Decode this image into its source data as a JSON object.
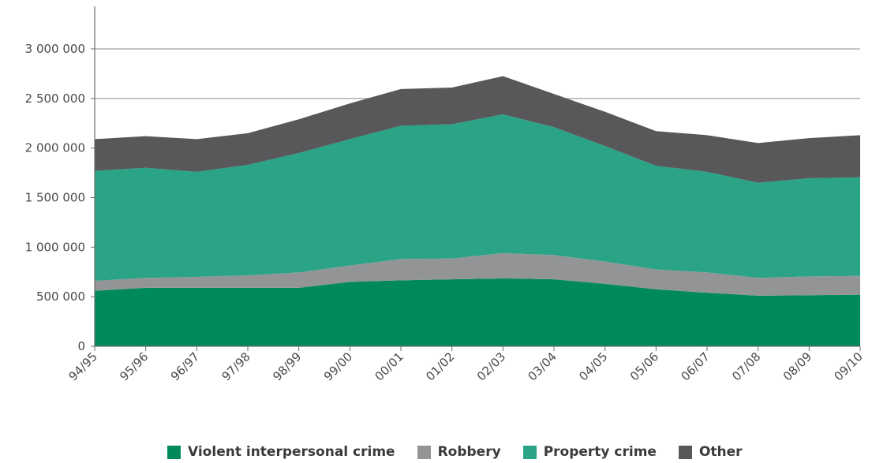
{
  "chart_data": {
    "type": "area",
    "stacked": true,
    "categories": [
      "94/95",
      "95/96",
      "96/97",
      "97/98",
      "98/99",
      "99/00",
      "00/01",
      "01/02",
      "02/03",
      "03/04",
      "04/05",
      "05/06",
      "06/07",
      "07/08",
      "08/09",
      "09/10"
    ],
    "series": [
      {
        "name": "Violent interpersonal crime",
        "color": "#008a5b",
        "values": [
          560000,
          590000,
          590000,
          590000,
          590000,
          650000,
          665000,
          675000,
          685000,
          675000,
          630000,
          575000,
          540000,
          510000,
          515000,
          520000
        ]
      },
      {
        "name": "Robbery",
        "color": "#939496",
        "values": [
          100000,
          100000,
          110000,
          125000,
          155000,
          165000,
          215000,
          210000,
          255000,
          245000,
          225000,
          200000,
          205000,
          180000,
          190000,
          190000
        ]
      },
      {
        "name": "Property crime",
        "color": "#2aa386",
        "values": [
          1110000,
          1110000,
          1060000,
          1115000,
          1205000,
          1275000,
          1345000,
          1355000,
          1400000,
          1290000,
          1165000,
          1045000,
          1015000,
          960000,
          990000,
          995000
        ]
      },
      {
        "name": "Other",
        "color": "#58585a",
        "values": [
          320000,
          320000,
          330000,
          320000,
          340000,
          360000,
          370000,
          370000,
          385000,
          335000,
          345000,
          350000,
          370000,
          400000,
          405000,
          425000
        ]
      }
    ],
    "ylim": [
      0,
      3000000
    ],
    "yticks": [
      0,
      500000,
      1000000,
      1500000,
      2000000,
      2500000,
      3000000
    ],
    "ytick_labels": [
      "0",
      "500 000",
      "1 000 000",
      "1 500 000",
      "2 000 000",
      "2 500 000",
      "3 000 000"
    ],
    "grid": true,
    "legend_position": "bottom",
    "title": "",
    "xlabel": "",
    "ylabel": ""
  }
}
